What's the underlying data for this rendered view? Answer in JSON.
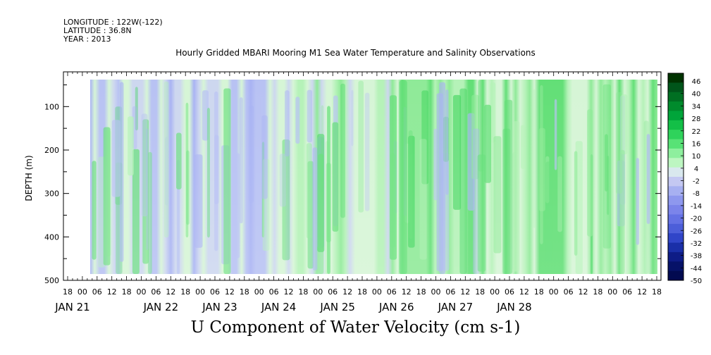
{
  "header": {
    "longitude": "LONGITUDE : 122W(-122)",
    "latitude": "LATITUDE : 36.8N",
    "year": "YEAR : 2013"
  },
  "chart_data": {
    "type": "heatmap",
    "title": "Hourly Gridded MBARI Mooring M1 Sea Water Temperature and Salinity Observations",
    "bottom_title": "U Component of Water Velocity (cm s-1)",
    "ylabel": "DEPTH (m)",
    "ylim": [
      500,
      20
    ],
    "y_ticks": [
      100,
      200,
      300,
      400,
      500
    ],
    "hour_ticks": [
      "18",
      "00",
      "06",
      "12",
      "18",
      "00",
      "06",
      "12",
      "18",
      "00",
      "06",
      "12",
      "18",
      "00",
      "06",
      "12",
      "18",
      "00",
      "06",
      "12",
      "18",
      "00",
      "06",
      "12",
      "18",
      "00",
      "06",
      "12",
      "18",
      "00",
      "06",
      "12",
      "18",
      "00",
      "06",
      "12",
      "18",
      "00",
      "06",
      "12",
      "18"
    ],
    "day_labels": [
      "JAN 21",
      "JAN 22",
      "JAN 23",
      "JAN 24",
      "JAN 25",
      "JAN 26",
      "JAN 27",
      "JAN 28"
    ],
    "colorbar": {
      "labels": [
        "46",
        "40",
        "34",
        "28",
        "22",
        "16",
        "10",
        "4",
        "-2",
        "-8",
        "-14",
        "-20",
        "-26",
        "-32",
        "-38",
        "-44",
        "-50"
      ],
      "colors": [
        "#003300",
        "#00551a",
        "#006f22",
        "#008b2c",
        "#00a53a",
        "#13bf47",
        "#2fd35b",
        "#58e276",
        "#8eef9e",
        "#bdf6c1",
        "#d9e8ee",
        "#c4c8f2",
        "#a7b0f1",
        "#8e98ee",
        "#7b84ea",
        "#6471e4",
        "#4c5ed9",
        "#3045c8",
        "#1a2fa8",
        "#0e1c86",
        "#061268",
        "#020a50"
      ]
    },
    "observed_pattern": "U velocity ranges roughly -20 to +30 cm/s; westward (blue) bands dominate 21-23 Jan, eastward (green) flow strengthens through 24-28 Jan with strongest values near surface on 24-25 Jan and 28 Jan"
  }
}
